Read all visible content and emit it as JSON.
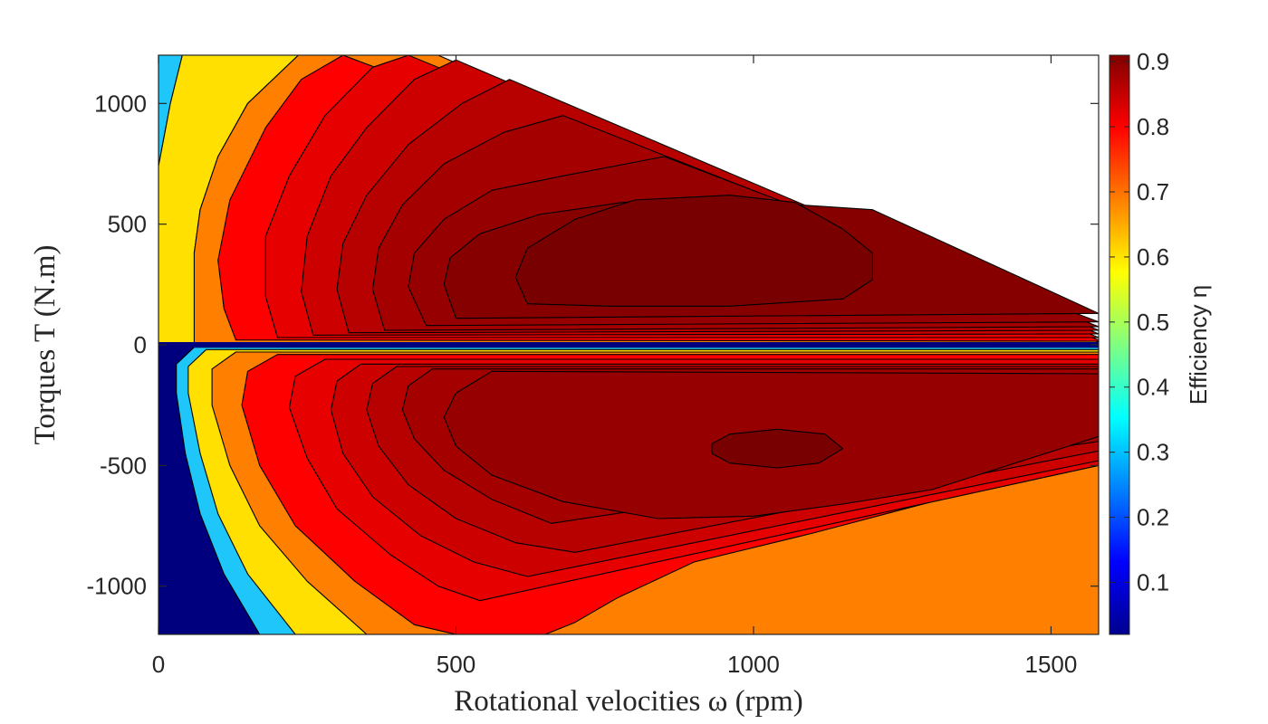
{
  "chart_data": {
    "type": "heatmap",
    "subtype": "filled-contour efficiency map",
    "title": "",
    "xlabel": "Rotational velocities ω (rpm)",
    "ylabel": "Torques T (N.m)",
    "xlim": [
      0,
      1580
    ],
    "ylim": [
      -1200,
      1200
    ],
    "xticks": [
      0,
      500,
      1000,
      1500
    ],
    "yticks": [
      1000,
      500,
      0,
      -500,
      -1000
    ],
    "xtick_labels": [
      "0",
      "500",
      "1000",
      "1500"
    ],
    "ytick_labels": [
      "1000",
      "500",
      "0",
      "-500",
      "-1000"
    ],
    "colorbar": {
      "label": "Efficiency η",
      "range": [
        0.02,
        0.91
      ],
      "ticks": [
        0.1,
        0.2,
        0.3,
        0.4,
        0.5,
        0.6,
        0.7,
        0.8,
        0.9
      ],
      "tick_labels": [
        "0.1",
        "0.2",
        "0.3",
        "0.4",
        "0.5",
        "0.6",
        "0.7",
        "0.8",
        "0.9"
      ],
      "colormap": "jet",
      "colors": [
        "#00008F",
        "#0000FF",
        "#0080FF",
        "#00FFFF",
        "#80FF80",
        "#FFFF00",
        "#FF8000",
        "#FF0000",
        "#800000"
      ]
    },
    "contour_levels": [
      0.05,
      0.3,
      0.55,
      0.7,
      0.8,
      0.83,
      0.85,
      0.87,
      0.88,
      0.89,
      0.9,
      0.91
    ],
    "level_colors": {
      "0.05": "#00007F",
      "0.3": "#1EC6FA",
      "0.55": "#FFE000",
      "0.7": "#FF7F00",
      "0.8": "#FF0000",
      "0.83": "#E60000",
      "0.85": "#CD0000",
      "0.87": "#B70000",
      "0.88": "#A40000",
      "0.89": "#960000",
      "0.9": "#870000",
      "0.91": "#790000"
    },
    "regions_motor": [
      {
        "level": 0.3,
        "points": [
          [
            0,
            30
          ],
          [
            0,
            1200
          ],
          [
            40,
            1200
          ],
          [
            20,
            1000
          ],
          [
            0,
            740
          ],
          [
            0,
            30
          ]
        ]
      },
      {
        "level": 0.55,
        "points": [
          [
            0,
            30
          ],
          [
            0,
            740
          ],
          [
            20,
            1000
          ],
          [
            40,
            1200
          ],
          [
            235,
            1200
          ],
          [
            150,
            1000
          ],
          [
            100,
            780
          ],
          [
            70,
            560
          ],
          [
            60,
            380
          ],
          [
            75,
            270
          ],
          [
            110,
            150
          ],
          [
            160,
            70
          ],
          [
            260,
            30
          ],
          [
            500,
            10
          ],
          [
            1580,
            5
          ],
          [
            1580,
            0
          ],
          [
            0,
            0
          ]
        ]
      },
      {
        "level": 0.7,
        "points": [
          [
            60,
            0
          ],
          [
            60,
            380
          ],
          [
            70,
            560
          ],
          [
            100,
            780
          ],
          [
            150,
            1000
          ],
          [
            235,
            1200
          ],
          [
            470,
            1200
          ],
          [
            1580,
            10
          ],
          [
            1580,
            0
          ]
        ]
      },
      {
        "level": 0.8,
        "points": [
          [
            130,
            20
          ],
          [
            110,
            150
          ],
          [
            100,
            350
          ],
          [
            120,
            600
          ],
          [
            180,
            900
          ],
          [
            240,
            1100
          ],
          [
            310,
            1200
          ],
          [
            1580,
            20
          ],
          [
            1580,
            15
          ]
        ]
      },
      {
        "level": 0.83,
        "points": [
          [
            200,
            30
          ],
          [
            180,
            200
          ],
          [
            180,
            450
          ],
          [
            220,
            700
          ],
          [
            280,
            950
          ],
          [
            360,
            1150
          ],
          [
            420,
            1200
          ],
          [
            1580,
            30
          ]
        ]
      },
      {
        "level": 0.85,
        "points": [
          [
            260,
            40
          ],
          [
            240,
            220
          ],
          [
            250,
            450
          ],
          [
            290,
            700
          ],
          [
            350,
            900
          ],
          [
            430,
            1100
          ],
          [
            500,
            1180
          ],
          [
            1580,
            45
          ]
        ]
      },
      {
        "level": 0.87,
        "points": [
          [
            320,
            50
          ],
          [
            300,
            230
          ],
          [
            310,
            420
          ],
          [
            350,
            620
          ],
          [
            420,
            830
          ],
          [
            510,
            1000
          ],
          [
            590,
            1100
          ],
          [
            1580,
            60
          ]
        ]
      },
      {
        "level": 0.88,
        "points": [
          [
            380,
            60
          ],
          [
            360,
            230
          ],
          [
            370,
            400
          ],
          [
            410,
            580
          ],
          [
            480,
            750
          ],
          [
            580,
            880
          ],
          [
            680,
            950
          ],
          [
            1580,
            75
          ]
        ]
      },
      {
        "level": 0.89,
        "points": [
          [
            450,
            80
          ],
          [
            420,
            240
          ],
          [
            430,
            380
          ],
          [
            480,
            520
          ],
          [
            560,
            640
          ],
          [
            680,
            700
          ],
          [
            850,
            780
          ],
          [
            1580,
            95
          ]
        ]
      },
      {
        "level": 0.9,
        "points": [
          [
            500,
            110
          ],
          [
            480,
            250
          ],
          [
            490,
            360
          ],
          [
            540,
            460
          ],
          [
            640,
            540
          ],
          [
            780,
            590
          ],
          [
            950,
            600
          ],
          [
            1200,
            560
          ],
          [
            1580,
            130
          ]
        ]
      },
      {
        "level": 0.91,
        "points": [
          [
            620,
            170
          ],
          [
            600,
            280
          ],
          [
            620,
            400
          ],
          [
            700,
            520
          ],
          [
            800,
            600
          ],
          [
            960,
            620
          ],
          [
            1070,
            590
          ],
          [
            1150,
            480
          ],
          [
            1200,
            380
          ],
          [
            1200,
            270
          ],
          [
            1150,
            190
          ],
          [
            960,
            160
          ],
          [
            760,
            160
          ],
          [
            620,
            170
          ]
        ]
      }
    ],
    "regions_generator": [
      {
        "level": 0.05,
        "points": [
          [
            0,
            0
          ],
          [
            0,
            -1200
          ],
          [
            1580,
            -1200
          ],
          [
            1580,
            0
          ]
        ]
      },
      {
        "level": 0.3,
        "points": [
          [
            60,
            -10
          ],
          [
            30,
            -80
          ],
          [
            30,
            -200
          ],
          [
            45,
            -450
          ],
          [
            70,
            -700
          ],
          [
            110,
            -950
          ],
          [
            170,
            -1200
          ],
          [
            1580,
            -1200
          ],
          [
            1580,
            -10
          ]
        ]
      },
      {
        "level": 0.55,
        "points": [
          [
            80,
            -20
          ],
          [
            50,
            -90
          ],
          [
            50,
            -200
          ],
          [
            70,
            -450
          ],
          [
            100,
            -700
          ],
          [
            150,
            -950
          ],
          [
            230,
            -1200
          ],
          [
            1580,
            -1200
          ],
          [
            1580,
            -20
          ]
        ]
      },
      {
        "level": 0.7,
        "points": [
          [
            130,
            -30
          ],
          [
            90,
            -100
          ],
          [
            90,
            -250
          ],
          [
            120,
            -500
          ],
          [
            170,
            -750
          ],
          [
            250,
            -980
          ],
          [
            350,
            -1200
          ],
          [
            1580,
            -1200
          ],
          [
            1580,
            -30
          ]
        ]
      },
      {
        "level": 0.8,
        "points": [
          [
            200,
            -40
          ],
          [
            150,
            -110
          ],
          [
            140,
            -250
          ],
          [
            170,
            -500
          ],
          [
            230,
            -750
          ],
          [
            330,
            -980
          ],
          [
            430,
            -1160
          ],
          [
            500,
            -1200
          ],
          [
            650,
            -1200
          ],
          [
            700,
            -1150
          ],
          [
            770,
            -1050
          ],
          [
            900,
            -900
          ],
          [
            1100,
            -780
          ],
          [
            1300,
            -650
          ],
          [
            1580,
            -500
          ],
          [
            1580,
            -40
          ]
        ]
      },
      {
        "level": 0.83,
        "points": [
          [
            280,
            -60
          ],
          [
            230,
            -130
          ],
          [
            220,
            -260
          ],
          [
            250,
            -470
          ],
          [
            300,
            -680
          ],
          [
            390,
            -870
          ],
          [
            470,
            -1000
          ],
          [
            540,
            -1060
          ],
          [
            1580,
            -500
          ],
          [
            1580,
            -60
          ]
        ]
      },
      {
        "level": 0.85,
        "points": [
          [
            340,
            -80
          ],
          [
            300,
            -150
          ],
          [
            290,
            -270
          ],
          [
            310,
            -450
          ],
          [
            360,
            -630
          ],
          [
            440,
            -790
          ],
          [
            530,
            -900
          ],
          [
            620,
            -960
          ],
          [
            1580,
            -480
          ],
          [
            1580,
            -80
          ]
        ]
      },
      {
        "level": 0.87,
        "points": [
          [
            400,
            -90
          ],
          [
            360,
            -160
          ],
          [
            350,
            -270
          ],
          [
            370,
            -420
          ],
          [
            420,
            -580
          ],
          [
            500,
            -720
          ],
          [
            600,
            -820
          ],
          [
            700,
            -860
          ],
          [
            1580,
            -440
          ],
          [
            1580,
            -90
          ]
        ]
      },
      {
        "level": 0.88,
        "points": [
          [
            460,
            -100
          ],
          [
            420,
            -170
          ],
          [
            410,
            -270
          ],
          [
            430,
            -390
          ],
          [
            480,
            -520
          ],
          [
            560,
            -640
          ],
          [
            660,
            -740
          ],
          [
            1580,
            -400
          ],
          [
            1580,
            -100
          ]
        ]
      },
      {
        "level": 0.89,
        "points": [
          [
            560,
            -110
          ],
          [
            500,
            -200
          ],
          [
            480,
            -300
          ],
          [
            500,
            -420
          ],
          [
            560,
            -540
          ],
          [
            680,
            -650
          ],
          [
            840,
            -720
          ],
          [
            1000,
            -710
          ],
          [
            1150,
            -660
          ],
          [
            1300,
            -600
          ],
          [
            1580,
            -380
          ],
          [
            1580,
            -120
          ]
        ]
      },
      {
        "level": 0.91,
        "points": [
          [
            930,
            -410
          ],
          [
            960,
            -370
          ],
          [
            1040,
            -350
          ],
          [
            1120,
            -370
          ],
          [
            1150,
            -430
          ],
          [
            1110,
            -490
          ],
          [
            1040,
            -510
          ],
          [
            960,
            -490
          ],
          [
            930,
            -450
          ]
        ]
      }
    ]
  }
}
